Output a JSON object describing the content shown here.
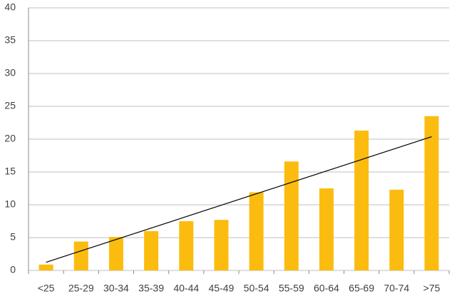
{
  "chart_data": {
    "type": "bar",
    "categories": [
      "<25",
      "25-29",
      "30-34",
      "35-39",
      "40-44",
      "45-49",
      "50-54",
      "55-59",
      "60-64",
      "65-69",
      "70-74",
      ">75"
    ],
    "values": [
      0.9,
      4.4,
      5.1,
      6.0,
      7.5,
      7.7,
      11.9,
      16.6,
      12.5,
      21.3,
      12.3,
      23.5
    ],
    "color": "#fbbc0f",
    "trendline": true,
    "trendline_color": "#000000",
    "ylim": [
      0,
      40
    ],
    "yticks": [
      0,
      5,
      10,
      15,
      20,
      25,
      30,
      35,
      40
    ],
    "grid": true
  }
}
